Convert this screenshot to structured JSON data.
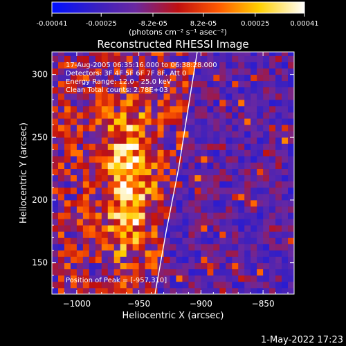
{
  "chart_data": {
    "type": "heatmap",
    "title": "Reconstructed RHESSI Image",
    "xlabel": "Heliocentric X (arcsec)",
    "ylabel": "Heliocentric Y (arcsec)",
    "xlim": [
      -1020,
      -825
    ],
    "ylim": [
      125,
      318
    ],
    "x_ticks": [
      -1000,
      -950,
      -900,
      -850
    ],
    "y_ticks": [
      150,
      200,
      250,
      300
    ],
    "colorbar": {
      "ticks": [
        -0.00041,
        -0.00025,
        -8.2e-05,
        8.2e-05,
        0.00025,
        0.00041
      ],
      "tick_labels": [
        "-0.00041",
        "-0.00025",
        "-8.2e-05",
        "8.2e-05",
        "0.00025",
        "0.00041"
      ],
      "unit_label": "(photons cm⁻² s⁻¹ asec⁻²)",
      "colormap": "blue-purple-red-orange-yellow-white"
    },
    "annotations": [
      "17-Aug-2005 06:35:16.000 to 06:38:28.000",
      "Detectors: 3F 4F 5F 6F 7F 8F, Att 0",
      "Energy Range: 12.0 - 25.0 keV",
      "Clean    Total counts: 2.78E+03"
    ],
    "peak_label": "Position of Peak = [-957,310]",
    "peak": {
      "x": -957,
      "y": 310
    },
    "limb": {
      "x": [
        -937,
        -928,
        -918,
        -910,
        -903
      ],
      "y": [
        125,
        175,
        225,
        275,
        318
      ]
    },
    "bright_source": {
      "x": -958,
      "y": 215
    },
    "grid": false
  },
  "footer": {
    "timestamp": "1-May-2022 17:23"
  }
}
